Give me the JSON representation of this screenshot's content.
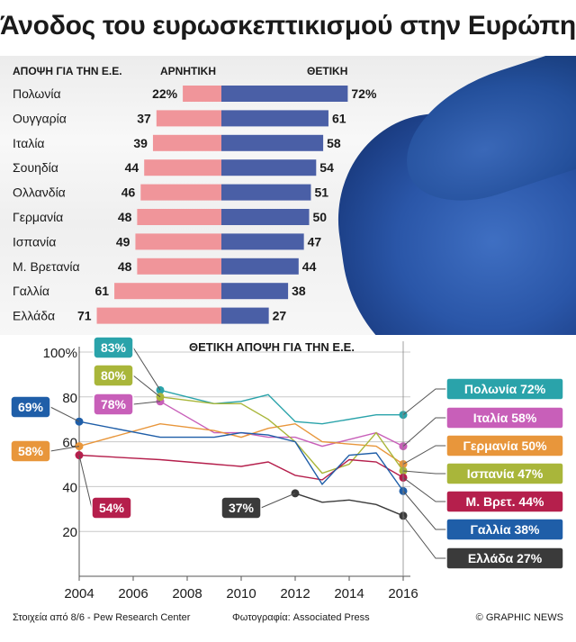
{
  "title": "Άνοδος του ευρωσκεπτικισμού στην Ευρώπη",
  "footer": {
    "source": "Στοιχεία από 8/6 - Pew Research Center",
    "photo": "Φωτογραφία: Associated Press",
    "brand": "© GRAPHIC NEWS"
  },
  "chart_data": [
    {
      "type": "bar",
      "header": "ΑΠΟΨΗ ΓΙΑ ΤΗΝ Ε.Ε.",
      "categories": [
        "Πολωνία",
        "Ουγγαρία",
        "Ιταλία",
        "Σουηδία",
        "Ολλανδία",
        "Γερμανία",
        "Ισπανία",
        "Μ. Βρετανία",
        "Γαλλία",
        "Ελλάδα"
      ],
      "series": [
        {
          "name": "ΑΡΝΗΤΙΚΗ",
          "values": [
            22,
            37,
            39,
            44,
            46,
            48,
            49,
            48,
            61,
            71
          ],
          "labels": [
            "22%",
            "37",
            "39",
            "44",
            "46",
            "48",
            "49",
            "48",
            "61",
            "71"
          ],
          "color": "#f0959a"
        },
        {
          "name": "ΘΕΤΙΚΗ",
          "values": [
            72,
            61,
            58,
            54,
            51,
            50,
            47,
            44,
            38,
            27
          ],
          "labels": [
            "72%",
            "61",
            "58",
            "54",
            "51",
            "50",
            "47",
            "44",
            "38",
            "27"
          ],
          "color": "#4a5fa6"
        }
      ]
    },
    {
      "type": "line",
      "title": "ΘΕΤΙΚΗ ΑΠΟΨΗ ΓΙΑ ΤΗΝ Ε.Ε.",
      "xlim": [
        2004,
        2016
      ],
      "ylim": [
        0,
        100
      ],
      "xticks": [
        "2004",
        "2006",
        "2008",
        "2010",
        "2012",
        "2014",
        "2016"
      ],
      "yticks": [
        "20",
        "40",
        "60",
        "80",
        "100%"
      ],
      "series": [
        {
          "name": "Πολωνία",
          "color": "#2aa3aa",
          "start_label": "83%",
          "end_label": "Πολωνία 72%",
          "points": [
            [
              2007,
              83
            ],
            [
              2009,
              77
            ],
            [
              2010,
              78
            ],
            [
              2011,
              81
            ],
            [
              2012,
              69
            ],
            [
              2013,
              68
            ],
            [
              2015,
              72
            ],
            [
              2016,
              72
            ]
          ]
        },
        {
          "name": "Ιταλία",
          "color": "#c85fb9",
          "start_label": "78%",
          "end_label": "Ιταλία 58%",
          "points": [
            [
              2007,
              78
            ],
            [
              2009,
              64
            ],
            [
              2010,
              64
            ],
            [
              2011,
              62
            ],
            [
              2012,
              62
            ],
            [
              2013,
              58
            ],
            [
              2015,
              64
            ],
            [
              2016,
              58
            ]
          ]
        },
        {
          "name": "Γερμανία",
          "color": "#e8963b",
          "start_label": "58%",
          "end_label": "Γερμανία 50%",
          "points": [
            [
              2004,
              58
            ],
            [
              2007,
              68
            ],
            [
              2009,
              65
            ],
            [
              2010,
              62
            ],
            [
              2011,
              66
            ],
            [
              2012,
              68
            ],
            [
              2013,
              60
            ],
            [
              2015,
              58
            ],
            [
              2016,
              50
            ]
          ]
        },
        {
          "name": "Ισπανία",
          "color": "#a9b63a",
          "start_label": "80%",
          "end_label": "Ισπανία 47%",
          "points": [
            [
              2007,
              80
            ],
            [
              2009,
              77
            ],
            [
              2010,
              77
            ],
            [
              2011,
              70
            ],
            [
              2012,
              60
            ],
            [
              2013,
              46
            ],
            [
              2014,
              50
            ],
            [
              2015,
              64
            ],
            [
              2016,
              47
            ]
          ]
        },
        {
          "name": "Μ. Βρετ.",
          "color": "#b51f4c",
          "start_label": "54%",
          "end_label": "Μ. Βρετ. 44%",
          "points": [
            [
              2004,
              54
            ],
            [
              2007,
              52
            ],
            [
              2009,
              50
            ],
            [
              2010,
              49
            ],
            [
              2011,
              51
            ],
            [
              2012,
              45
            ],
            [
              2013,
              43
            ],
            [
              2014,
              52
            ],
            [
              2015,
              51
            ],
            [
              2016,
              44
            ]
          ]
        },
        {
          "name": "Γαλλία",
          "color": "#1f5ea8",
          "start_label": "69%",
          "end_label": "Γαλλία 38%",
          "points": [
            [
              2004,
              69
            ],
            [
              2007,
              62
            ],
            [
              2009,
              62
            ],
            [
              2010,
              64
            ],
            [
              2011,
              63
            ],
            [
              2012,
              60
            ],
            [
              2013,
              41
            ],
            [
              2014,
              54
            ],
            [
              2015,
              55
            ],
            [
              2016,
              38
            ]
          ]
        },
        {
          "name": "Ελλάδα",
          "color": "#3a3a3a",
          "start_label": "37%",
          "end_label": "Ελλάδα 27%",
          "points": [
            [
              2012,
              37
            ],
            [
              2013,
              33
            ],
            [
              2014,
              34
            ],
            [
              2015,
              32
            ],
            [
              2016,
              27
            ]
          ]
        }
      ]
    }
  ]
}
